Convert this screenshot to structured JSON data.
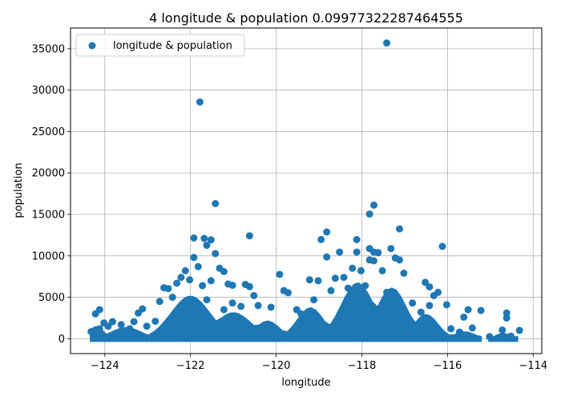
{
  "chart_data": {
    "type": "scatter",
    "title": "4 longitude & population 0.09977322287464555",
    "xlabel": "longitude",
    "ylabel": "population",
    "xlim": [
      -124.8,
      -113.8
    ],
    "ylim": [
      -1800,
      37500
    ],
    "xticks": [
      -124,
      -122,
      -120,
      -118,
      -116,
      -114
    ],
    "xtick_labels": [
      "−124",
      "−122",
      "−120",
      "−118",
      "−116",
      "−114"
    ],
    "yticks": [
      0,
      5000,
      10000,
      15000,
      20000,
      25000,
      30000,
      35000
    ],
    "ytick_labels": [
      "0",
      "5000",
      "10000",
      "15000",
      "20000",
      "25000",
      "30000",
      "35000"
    ],
    "grid": true,
    "legend_position": "upper-left",
    "color": "#1f77b4",
    "series": [
      {
        "name": "longitude & population",
        "points": [
          [
            -117.42,
            35682
          ],
          [
            -121.78,
            28566
          ],
          [
            -121.42,
            16305
          ],
          [
            -117.72,
            16122
          ],
          [
            -117.82,
            15037
          ],
          [
            -117.12,
            13251
          ],
          [
            -118.82,
            12873
          ],
          [
            -120.62,
            12427
          ],
          [
            -121.92,
            12153
          ],
          [
            -121.68,
            12100
          ],
          [
            -121.52,
            11935
          ],
          [
            -118.12,
            11956
          ],
          [
            -118.95,
            11973
          ],
          [
            -116.12,
            11139
          ],
          [
            -117.32,
            10877
          ],
          [
            -117.82,
            10877
          ],
          [
            -121.62,
            11272
          ],
          [
            -121.42,
            10267
          ],
          [
            -117.62,
            10388
          ],
          [
            -117.72,
            10450
          ],
          [
            -118.52,
            10450
          ],
          [
            -118.12,
            10450
          ],
          [
            -121.92,
            9804
          ],
          [
            -118.82,
            9860
          ],
          [
            -117.82,
            9511
          ],
          [
            -117.12,
            9511
          ],
          [
            -117.72,
            9400
          ],
          [
            -117.22,
            9750
          ],
          [
            -119.92,
            7755
          ],
          [
            -121.82,
            8700
          ],
          [
            -121.32,
            8500
          ],
          [
            -121.22,
            8100
          ],
          [
            -118.22,
            8500
          ],
          [
            -118.02,
            8200
          ],
          [
            -117.52,
            8200
          ],
          [
            -117.02,
            7900
          ],
          [
            -122.12,
            8200
          ],
          [
            -122.22,
            7400
          ],
          [
            -122.02,
            7100
          ],
          [
            -121.52,
            7000
          ],
          [
            -120.72,
            6550
          ],
          [
            -120.62,
            6280
          ],
          [
            -121.12,
            6600
          ],
          [
            -121.02,
            6450
          ],
          [
            -116.52,
            6800
          ],
          [
            -116.42,
            6250
          ],
          [
            -119.22,
            7100
          ],
          [
            -119.02,
            7000
          ],
          [
            -118.62,
            7300
          ],
          [
            -118.42,
            7400
          ],
          [
            -122.62,
            6150
          ],
          [
            -122.52,
            6050
          ],
          [
            -122.32,
            6700
          ],
          [
            -121.72,
            6400
          ],
          [
            -120.52,
            5200
          ],
          [
            -119.82,
            5800
          ],
          [
            -119.72,
            5550
          ],
          [
            -116.22,
            5600
          ],
          [
            -116.32,
            5200
          ],
          [
            -116.02,
            4100
          ],
          [
            -123.12,
            3600
          ],
          [
            -123.22,
            3100
          ],
          [
            -124.12,
            3500
          ],
          [
            -124.22,
            3000
          ],
          [
            -115.22,
            3400
          ],
          [
            -114.62,
            3100
          ],
          [
            -114.62,
            2500
          ],
          [
            -115.52,
            3500
          ],
          [
            -115.62,
            2600
          ],
          [
            -120.12,
            3800
          ],
          [
            -119.52,
            3500
          ],
          [
            -124.32,
            850
          ],
          [
            -124.12,
            1200
          ],
          [
            -123.82,
            2050
          ],
          [
            -123.62,
            1700
          ],
          [
            -123.32,
            2050
          ],
          [
            -114.32,
            1000
          ],
          [
            -114.72,
            1050
          ],
          [
            -115.02,
            250
          ],
          [
            -114.52,
            300
          ],
          [
            -124.02,
            1900
          ],
          [
            -123.92,
            1500
          ],
          [
            -123.42,
            1200
          ],
          [
            -123.02,
            1500
          ],
          [
            -122.82,
            2100
          ],
          [
            -121.02,
            4300
          ],
          [
            -120.82,
            3900
          ],
          [
            -120.42,
            4000
          ],
          [
            -119.42,
            3000
          ],
          [
            -119.12,
            4700
          ],
          [
            -118.72,
            5800
          ],
          [
            -118.32,
            6100
          ],
          [
            -117.92,
            6400
          ],
          [
            -117.42,
            5600
          ],
          [
            -117.22,
            5400
          ],
          [
            -116.82,
            4300
          ],
          [
            -116.62,
            3200
          ],
          [
            -116.42,
            4000
          ],
          [
            -115.92,
            1200
          ],
          [
            -115.72,
            800
          ],
          [
            -115.42,
            1300
          ],
          [
            -122.72,
            4500
          ],
          [
            -122.42,
            5000
          ],
          [
            -121.62,
            4700
          ],
          [
            -121.22,
            3500
          ]
        ]
      }
    ]
  }
}
